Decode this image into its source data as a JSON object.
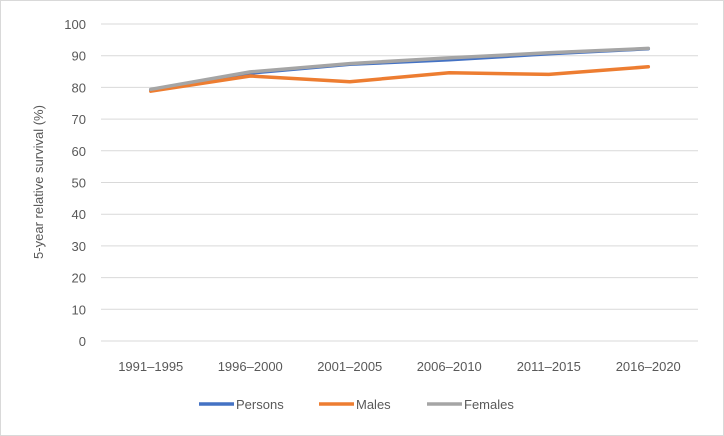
{
  "chart_data": {
    "type": "line",
    "title": "",
    "xlabel": "",
    "ylabel": "5-year relative survival (%)",
    "ylim": [
      0,
      100
    ],
    "yticks": [
      0,
      10,
      20,
      30,
      40,
      50,
      60,
      70,
      80,
      90,
      100
    ],
    "categories": [
      "1991–1995",
      "1996–2000",
      "2001–2005",
      "2006–2010",
      "2011–2015",
      "2016–2020"
    ],
    "grid": true,
    "legend_position": "bottom",
    "series": [
      {
        "name": "Persons",
        "color": "#4472c4",
        "values": [
          79.2,
          84.5,
          87.3,
          88.7,
          90.6,
          92.2
        ]
      },
      {
        "name": "Males",
        "color": "#ed7d31",
        "values": [
          78.8,
          83.6,
          81.8,
          84.6,
          84.1,
          86.5
        ]
      },
      {
        "name": "Females",
        "color": "#a5a5a5",
        "values": [
          79.4,
          84.9,
          87.5,
          89.3,
          90.9,
          92.3
        ]
      }
    ]
  }
}
